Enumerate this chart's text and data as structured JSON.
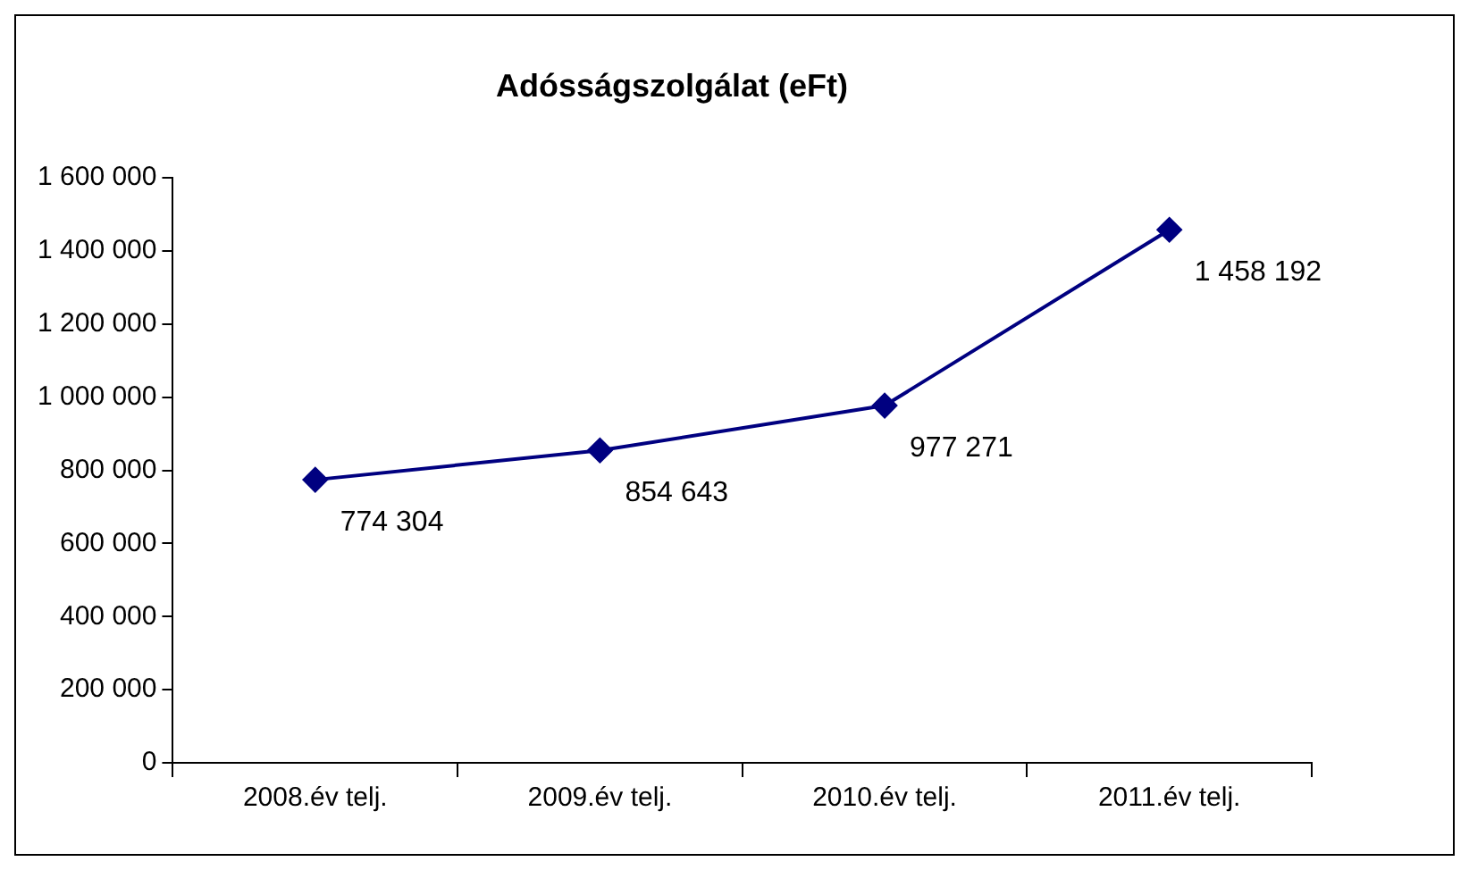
{
  "chart_data": {
    "type": "line",
    "title": "Adósságszolgálat (eFt)",
    "categories": [
      "2008.év telj.",
      "2009.év telj.",
      "2010.év telj.",
      "2011.év telj."
    ],
    "series": [
      {
        "color": "#000080",
        "values": [
          774304,
          854643,
          977271,
          1458192
        ],
        "value_labels": [
          "774 304",
          "854 643",
          "977 271",
          "1 458 192"
        ]
      }
    ],
    "ylim": [
      0,
      1600000
    ],
    "yticks": [
      {
        "value": 0,
        "label": "0"
      },
      {
        "value": 200000,
        "label": "200 000"
      },
      {
        "value": 400000,
        "label": "400 000"
      },
      {
        "value": 600000,
        "label": "600 000"
      },
      {
        "value": 800000,
        "label": "800 000"
      },
      {
        "value": 1000000,
        "label": "1 000 000"
      },
      {
        "value": 1200000,
        "label": "1 200 000"
      },
      {
        "value": 1400000,
        "label": "1 400 000"
      },
      {
        "value": 1600000,
        "label": "1 600 000"
      }
    ],
    "grid": false,
    "legend": false,
    "marker": "diamond",
    "line_style": "solid"
  }
}
